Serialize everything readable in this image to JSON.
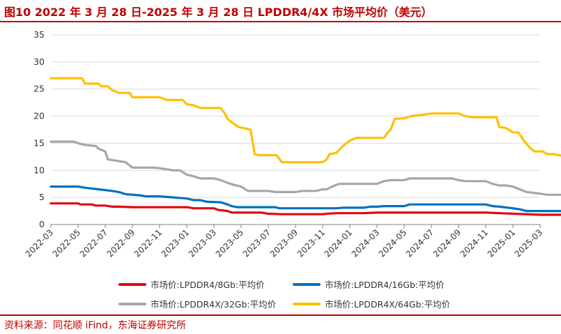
{
  "header": {
    "title": "图10 2022 年 3 月 28 日-2025 年 3 月 28 日 LPDDR4/4X 市场平均价（美元）"
  },
  "footer": {
    "source": "资料来源：同花顺 iFind，东海证券研究所"
  },
  "chart_data": {
    "type": "line",
    "title": "",
    "xlabel": "",
    "ylabel": "",
    "ylim": [
      0,
      35
    ],
    "yticks": [
      0,
      5,
      10,
      15,
      20,
      25,
      30,
      35
    ],
    "xticks": [
      "2022-03",
      "2022-05",
      "2022-07",
      "2022-09",
      "2022-11",
      "2023-01",
      "2023-03",
      "2023-05",
      "2023-07",
      "2023-09",
      "2023-11",
      "2024-01",
      "2024-03",
      "2024-05",
      "2024-07",
      "2024-09",
      "2024-11",
      "2025-01",
      "2025-03"
    ],
    "grid": "horizontal",
    "legend_position": "bottom",
    "series": [
      {
        "name": "市场价:LPDDR4/8Gb:平均价",
        "color": "#e30613",
        "points": [
          [
            0,
            3.9
          ],
          [
            2,
            3.9
          ],
          [
            2.2,
            3.7
          ],
          [
            3,
            3.7
          ],
          [
            3.3,
            3.5
          ],
          [
            4,
            3.5
          ],
          [
            4.5,
            3.3
          ],
          [
            5,
            3.3
          ],
          [
            6,
            3.2
          ],
          [
            9,
            3.2
          ],
          [
            10,
            3.2
          ],
          [
            10.5,
            3.0
          ],
          [
            11,
            3.0
          ],
          [
            12,
            3.0
          ],
          [
            12.3,
            2.7
          ],
          [
            13,
            2.5
          ],
          [
            13.3,
            2.2
          ],
          [
            14,
            2.2
          ],
          [
            15.5,
            2.2
          ],
          [
            16,
            2.0
          ],
          [
            17,
            1.9
          ],
          [
            19,
            1.9
          ],
          [
            20,
            1.9
          ],
          [
            20.3,
            2.0
          ],
          [
            21,
            2.1
          ],
          [
            23,
            2.1
          ],
          [
            24,
            2.2
          ],
          [
            27,
            2.2
          ],
          [
            29,
            2.2
          ],
          [
            31,
            2.2
          ],
          [
            32,
            2.2
          ],
          [
            33,
            2.1
          ],
          [
            34,
            2.0
          ],
          [
            35,
            1.9
          ],
          [
            36,
            1.8
          ],
          [
            37,
            1.8
          ],
          [
            38,
            1.8
          ],
          [
            38.4,
            1.9
          ]
        ]
      },
      {
        "name": "市场价:LPDDR4/16Gb:平均价",
        "color": "#0070c0",
        "points": [
          [
            0,
            7.0
          ],
          [
            2,
            7.0
          ],
          [
            2.5,
            6.8
          ],
          [
            3.5,
            6.5
          ],
          [
            4.5,
            6.2
          ],
          [
            5,
            6.0
          ],
          [
            5.5,
            5.6
          ],
          [
            6.5,
            5.4
          ],
          [
            7,
            5.2
          ],
          [
            8,
            5.2
          ],
          [
            9,
            5.0
          ],
          [
            10,
            4.8
          ],
          [
            10.5,
            4.5
          ],
          [
            11,
            4.5
          ],
          [
            11.5,
            4.2
          ],
          [
            12.5,
            4.1
          ],
          [
            13,
            3.7
          ],
          [
            13.3,
            3.4
          ],
          [
            13.7,
            3.2
          ],
          [
            14.5,
            3.2
          ],
          [
            16.5,
            3.2
          ],
          [
            16.8,
            3.0
          ],
          [
            18,
            3.0
          ],
          [
            21,
            3.0
          ],
          [
            21.5,
            3.1
          ],
          [
            23,
            3.1
          ],
          [
            23.5,
            3.3
          ],
          [
            24,
            3.3
          ],
          [
            24.5,
            3.4
          ],
          [
            26,
            3.4
          ],
          [
            26.4,
            3.7
          ],
          [
            27,
            3.7
          ],
          [
            31,
            3.7
          ],
          [
            32,
            3.7
          ],
          [
            32.5,
            3.4
          ],
          [
            33,
            3.3
          ],
          [
            34,
            3.0
          ],
          [
            34.5,
            2.8
          ],
          [
            35,
            2.5
          ],
          [
            36,
            2.5
          ],
          [
            38,
            2.5
          ],
          [
            38.4,
            3.1
          ]
        ]
      },
      {
        "name": "市场价:LPDDR4X/32Gb:平均价",
        "color": "#a6a6a6",
        "points": [
          [
            0,
            15.3
          ],
          [
            1.7,
            15.3
          ],
          [
            2,
            15.0
          ],
          [
            2.5,
            14.7
          ],
          [
            3.3,
            14.5
          ],
          [
            3.5,
            14.0
          ],
          [
            4,
            13.5
          ],
          [
            4.2,
            12.0
          ],
          [
            5,
            11.7
          ],
          [
            5.5,
            11.5
          ],
          [
            6,
            10.5
          ],
          [
            7,
            10.5
          ],
          [
            7.5,
            10.5
          ],
          [
            8,
            10.4
          ],
          [
            8.5,
            10.2
          ],
          [
            9,
            10.0
          ],
          [
            9.5,
            10.0
          ],
          [
            10,
            9.2
          ],
          [
            10.5,
            8.9
          ],
          [
            11,
            8.5
          ],
          [
            12,
            8.5
          ],
          [
            12.5,
            8.2
          ],
          [
            13,
            7.7
          ],
          [
            13.5,
            7.3
          ],
          [
            14,
            7.0
          ],
          [
            14.5,
            6.2
          ],
          [
            15,
            6.2
          ],
          [
            16,
            6.2
          ],
          [
            16.5,
            6.0
          ],
          [
            18,
            6.0
          ],
          [
            18.5,
            6.2
          ],
          [
            19,
            6.2
          ],
          [
            19.5,
            6.2
          ],
          [
            20,
            6.5
          ],
          [
            20.3,
            6.5
          ],
          [
            20.7,
            7.0
          ],
          [
            21.2,
            7.5
          ],
          [
            24,
            7.5
          ],
          [
            24.5,
            8.0
          ],
          [
            25,
            8.2
          ],
          [
            26,
            8.2
          ],
          [
            26.4,
            8.5
          ],
          [
            27,
            8.5
          ],
          [
            29.5,
            8.5
          ],
          [
            30,
            8.2
          ],
          [
            30.5,
            8.0
          ],
          [
            32,
            8.0
          ],
          [
            32.5,
            7.5
          ],
          [
            33,
            7.2
          ],
          [
            33.5,
            7.2
          ],
          [
            34,
            7.0
          ],
          [
            34.5,
            6.5
          ],
          [
            35,
            6.0
          ],
          [
            36,
            5.7
          ],
          [
            36.5,
            5.5
          ],
          [
            38,
            5.5
          ],
          [
            38.4,
            6.0
          ]
        ]
      },
      {
        "name": "市场价:LPDDR4X/64Gb:平均价",
        "color": "#ffc000",
        "points": [
          [
            0,
            27.0
          ],
          [
            2.3,
            27.0
          ],
          [
            2.5,
            26.0
          ],
          [
            3.5,
            26.0
          ],
          [
            3.7,
            25.5
          ],
          [
            4.2,
            25.5
          ],
          [
            4.5,
            24.8
          ],
          [
            5,
            24.3
          ],
          [
            5.8,
            24.3
          ],
          [
            6,
            23.5
          ],
          [
            7,
            23.5
          ],
          [
            8,
            23.5
          ],
          [
            8.5,
            23.0
          ],
          [
            9.7,
            23.0
          ],
          [
            10,
            22.2
          ],
          [
            10.5,
            22.0
          ],
          [
            11,
            21.5
          ],
          [
            12.5,
            21.5
          ],
          [
            12.8,
            20.5
          ],
          [
            13,
            19.5
          ],
          [
            13.5,
            18.5
          ],
          [
            13.8,
            18.0
          ],
          [
            14.2,
            17.8
          ],
          [
            14.7,
            17.5
          ],
          [
            15,
            13.0
          ],
          [
            15.3,
            12.8
          ],
          [
            16.6,
            12.8
          ],
          [
            17,
            11.5
          ],
          [
            19,
            11.5
          ],
          [
            20,
            11.5
          ],
          [
            20.3,
            12.0
          ],
          [
            20.5,
            13.0
          ],
          [
            21,
            13.2
          ],
          [
            21.5,
            14.5
          ],
          [
            22,
            15.5
          ],
          [
            22.5,
            16.0
          ],
          [
            24,
            16.0
          ],
          [
            24.5,
            16.0
          ],
          [
            24.8,
            17.0
          ],
          [
            25,
            17.5
          ],
          [
            25.3,
            19.5
          ],
          [
            26,
            19.6
          ],
          [
            26.5,
            20.0
          ],
          [
            27.5,
            20.3
          ],
          [
            28,
            20.5
          ],
          [
            30,
            20.5
          ],
          [
            30.5,
            20.0
          ],
          [
            31,
            19.8
          ],
          [
            32.8,
            19.8
          ],
          [
            33,
            18.0
          ],
          [
            33.5,
            17.8
          ],
          [
            34,
            17.0
          ],
          [
            34.4,
            17.0
          ],
          [
            34.8,
            15.5
          ],
          [
            35.3,
            14.0
          ],
          [
            35.6,
            13.5
          ],
          [
            36.2,
            13.5
          ],
          [
            36.5,
            13.0
          ],
          [
            37,
            13.0
          ],
          [
            38,
            12.5
          ],
          [
            39,
            12.5
          ],
          [
            39.3,
            12.5
          ],
          [
            40,
            12.5
          ],
          [
            40.2,
            13.4
          ]
        ]
      }
    ]
  }
}
